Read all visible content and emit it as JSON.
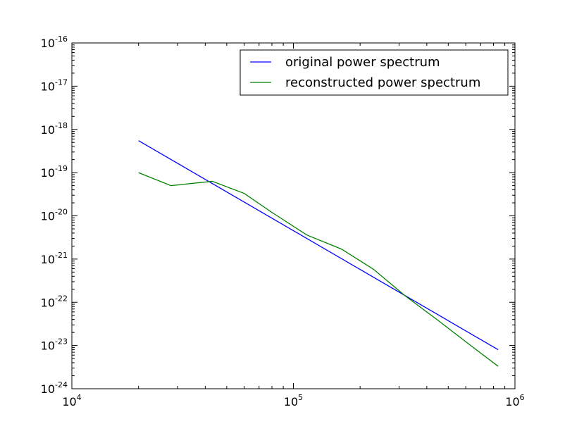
{
  "chart_data": {
    "type": "line",
    "title": "",
    "xlabel": "",
    "ylabel": "",
    "xscale": "log",
    "yscale": "log",
    "xlim": [
      10000,
      1000000
    ],
    "ylim": [
      1e-24,
      1e-16
    ],
    "grid": false,
    "legend_position": "upper right",
    "x_ticks": [
      {
        "base": "10",
        "exp": "4",
        "value": 10000
      },
      {
        "base": "10",
        "exp": "5",
        "value": 100000
      },
      {
        "base": "10",
        "exp": "6",
        "value": 1000000
      }
    ],
    "y_ticks": [
      {
        "base": "10",
        "exp": "-24",
        "value": 1e-24
      },
      {
        "base": "10",
        "exp": "-23",
        "value": 1e-23
      },
      {
        "base": "10",
        "exp": "-22",
        "value": 1e-22
      },
      {
        "base": "10",
        "exp": "-21",
        "value": 1e-21
      },
      {
        "base": "10",
        "exp": "-20",
        "value": 1e-20
      },
      {
        "base": "10",
        "exp": "-19",
        "value": 1e-19
      },
      {
        "base": "10",
        "exp": "-18",
        "value": 1e-18
      },
      {
        "base": "10",
        "exp": "-17",
        "value": 1e-17
      },
      {
        "base": "10",
        "exp": "-16",
        "value": 1e-16
      }
    ],
    "series": [
      {
        "name": "original power spectrum",
        "color": "#0000ff",
        "x": [
          20000,
          840000
        ],
        "y": [
          5.5e-19,
          8e-24
        ]
      },
      {
        "name": "reconstructed power spectrum",
        "color": "#008000",
        "x": [
          20000,
          28000,
          43000,
          60000,
          80000,
          115000,
          165000,
          230000,
          320000,
          450000,
          640000,
          840000
        ],
        "y": [
          1e-19,
          5e-20,
          6.3e-20,
          3.3e-20,
          1.2e-20,
          3.6e-21,
          1.7e-21,
          5.8e-22,
          1.4e-22,
          3.8e-23,
          9.5e-24,
          3.3e-24
        ]
      }
    ]
  }
}
